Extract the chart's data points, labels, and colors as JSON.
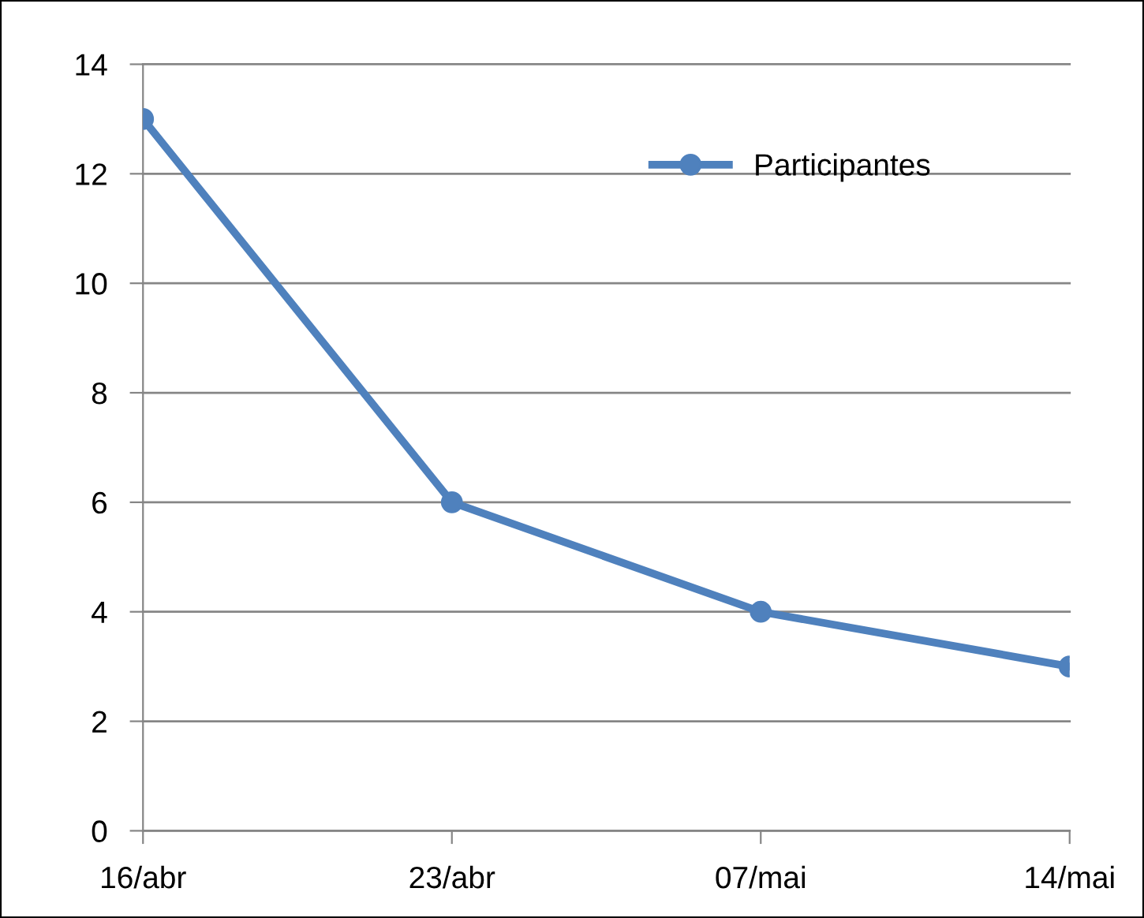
{
  "chart_data": {
    "type": "line",
    "categories": [
      "16/abr",
      "23/abr",
      "07/mai",
      "14/mai"
    ],
    "series": [
      {
        "name": "Participantes",
        "color": "#4f81bd",
        "values": [
          13,
          6,
          4,
          3
        ]
      }
    ],
    "ylim": [
      0,
      14
    ],
    "yticks": [
      0,
      2,
      4,
      6,
      8,
      10,
      12,
      14
    ],
    "grid": "y",
    "legend": "upper right",
    "marker": "circle",
    "line_style": "solid"
  }
}
